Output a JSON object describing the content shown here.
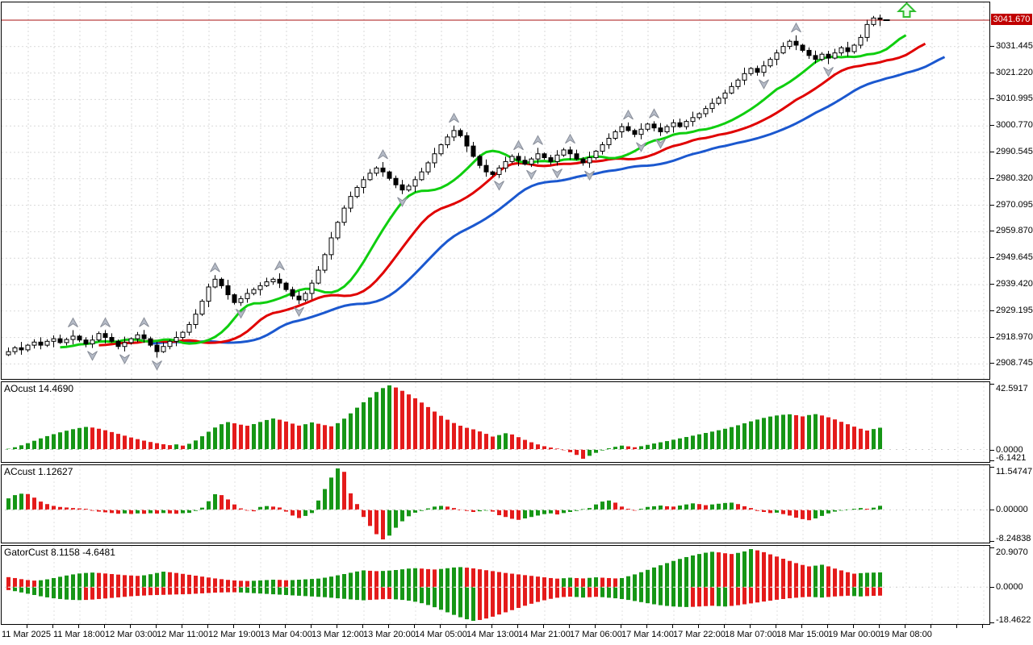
{
  "colors": {
    "background": "#ffffff",
    "grid": "#d9d9d9",
    "candle_border": "#000000",
    "candle_up_fill": "#ffffff",
    "candle_down_fill": "#000000",
    "alligator_jaw_blue": "#1b58cf",
    "alligator_teeth_red": "#e00000",
    "alligator_lips_green": "#0fce0f",
    "histogram_up_green": "#169616",
    "histogram_down_red": "#e41b1b",
    "price_line_red": "#aa1111",
    "price_tag_bg": "#c00000",
    "fractal_gray": "#b4bac6",
    "marker_green": "#2fbe2f"
  },
  "main_chart": {
    "y_axis": {
      "tag": "3041.670",
      "labels": [
        {
          "text": "3031.445",
          "value": 3031.445
        },
        {
          "text": "3021.220",
          "value": 3021.22
        },
        {
          "text": "3010.995",
          "value": 3010.995
        },
        {
          "text": "3000.770",
          "value": 3000.77
        },
        {
          "text": "2990.545",
          "value": 2990.545
        },
        {
          "text": "2980.320",
          "value": 2980.32
        },
        {
          "text": "2970.095",
          "value": 2970.095
        },
        {
          "text": "2959.870",
          "value": 2959.87
        },
        {
          "text": "2949.645",
          "value": 2949.645
        },
        {
          "text": "2939.420",
          "value": 2939.42
        },
        {
          "text": "2929.195",
          "value": 2929.195
        },
        {
          "text": "2918.970",
          "value": 2918.97
        },
        {
          "text": "2908.745",
          "value": 2908.745
        }
      ]
    },
    "x_axis": {
      "labels": [
        "11 Mar 2025",
        "11 Mar 18:00",
        "12 Mar 03:00",
        "12 Mar 11:00",
        "12 Mar 19:00",
        "13 Mar 04:00",
        "13 Mar 12:00",
        "13 Mar 20:00",
        "14 Mar 05:00",
        "14 Mar 13:00",
        "14 Mar 21:00",
        "17 Mar 06:00",
        "17 Mar 14:00",
        "17 Mar 22:00",
        "18 Mar 07:00",
        "18 Mar 15:00",
        "19 Mar 00:00",
        "19 Mar 08:00"
      ]
    },
    "current_price": 3041.67,
    "marker": "up-arrow"
  },
  "panels": {
    "ao": {
      "label": "AOcust 14.4690",
      "scale": {
        "max": "42.5917",
        "zero": "0.0000",
        "min": "-6.1421"
      }
    },
    "ac": {
      "label": "ACcust 1.12627",
      "scale": {
        "max": "11.54747",
        "zero": "0.00000",
        "min": "-8.24838"
      }
    },
    "gator": {
      "label": "GatorCust 8.1158 -4.6481",
      "scale": {
        "max": "20.9070",
        "zero": "0.0000",
        "min": "-18.4622"
      }
    }
  },
  "chart_data": [
    {
      "type": "candlestick",
      "name": "price",
      "current_price": 3041.67,
      "ylim": [
        2905.0,
        3048.6
      ],
      "wick_pattern": [
        1.6,
        0.7,
        2.3,
        0.5,
        1.1,
        1.9,
        0.8,
        1.3
      ],
      "alligator": {
        "jaw": {
          "period": 13,
          "shift": 10
        },
        "teeth": {
          "period": 8,
          "shift": 7
        },
        "lips": {
          "period": 5,
          "shift": 4
        }
      },
      "closes": [
        2913.5,
        2915.0,
        2914.2,
        2916.0,
        2917.2,
        2916.0,
        2917.5,
        2918.5,
        2917.0,
        2918.2,
        2919.5,
        2918.0,
        2916.5,
        2918.0,
        2920.5,
        2919.0,
        2917.5,
        2915.5,
        2917.0,
        2918.5,
        2920.0,
        2918.5,
        2916.0,
        2913.5,
        2915.5,
        2917.5,
        2919.0,
        2921.0,
        2924.0,
        2928.0,
        2933.0,
        2938.5,
        2941.5,
        2939.0,
        2935.5,
        2932.5,
        2934.0,
        2936.0,
        2937.5,
        2939.0,
        2940.5,
        2941.5,
        2940.0,
        2937.5,
        2935.0,
        2933.5,
        2936.0,
        2940.0,
        2945.0,
        2951.0,
        2957.5,
        2963.5,
        2969.0,
        2973.5,
        2977.0,
        2980.0,
        2982.5,
        2984.5,
        2983.0,
        2980.5,
        2978.0,
        2976.0,
        2977.5,
        2980.0,
        2983.0,
        2986.5,
        2990.0,
        2993.5,
        2996.5,
        2999.0,
        2997.0,
        2993.0,
        2989.0,
        2985.5,
        2983.0,
        2982.0,
        2984.5,
        2987.0,
        2989.0,
        2987.5,
        2986.0,
        2988.0,
        2990.0,
        2988.5,
        2987.0,
        2989.5,
        2991.5,
        2990.0,
        2988.0,
        2986.5,
        2988.5,
        2991.0,
        2993.5,
        2996.0,
        2998.5,
        3000.5,
        2999.0,
        2997.5,
        2999.5,
        3001.5,
        3000.0,
        2998.5,
        3000.5,
        3002.0,
        3000.5,
        3002.5,
        3004.0,
        3005.5,
        3007.5,
        3009.5,
        3011.5,
        3013.5,
        3016.0,
        3018.5,
        3021.0,
        3023.0,
        3021.5,
        3024.0,
        3026.5,
        3029.0,
        3031.5,
        3033.5,
        3032.0,
        3030.0,
        3028.0,
        3026.5,
        3028.5,
        3027.0,
        3029.0,
        3031.0,
        3029.5,
        3032.0,
        3035.0,
        3040.0,
        3042.5,
        3041.67
      ]
    },
    {
      "type": "bar",
      "name": "AOcust",
      "current": 14.469,
      "ylim": [
        -6.1421,
        42.5917
      ],
      "values": [
        0.5,
        1.5,
        2.8,
        4.2,
        5.8,
        7.4,
        8.9,
        10.2,
        11.4,
        12.5,
        13.5,
        14.3,
        15.0,
        14.6,
        13.8,
        12.8,
        11.6,
        10.4,
        9.2,
        8.0,
        6.9,
        5.9,
        5.0,
        4.2,
        3.5,
        2.9,
        3.4,
        2.6,
        3.8,
        6.0,
        8.8,
        11.8,
        14.6,
        16.8,
        18.2,
        17.4,
        16.5,
        15.8,
        16.9,
        18.3,
        19.6,
        20.6,
        19.8,
        18.6,
        17.2,
        15.9,
        16.8,
        18.0,
        17.1,
        16.2,
        15.4,
        17.5,
        20.5,
        24.0,
        27.8,
        31.4,
        34.6,
        38.2,
        40.8,
        42.59,
        41.2,
        39.0,
        36.6,
        34.0,
        31.2,
        28.2,
        25.2,
        22.4,
        19.8,
        17.6,
        15.8,
        14.4,
        13.4,
        12.0,
        10.4,
        8.6,
        9.6,
        10.8,
        10.0,
        8.2,
        6.4,
        4.8,
        3.4,
        2.2,
        1.3,
        0.6,
        0.1,
        -1.8,
        -3.6,
        -6.14,
        -4.2,
        -2.2,
        -0.6,
        0.8,
        1.8,
        2.6,
        2.1,
        1.5,
        2.2,
        3.1,
        4.0,
        4.8,
        5.6,
        6.5,
        7.4,
        8.3,
        9.2,
        10.1,
        11.0,
        11.9,
        12.8,
        13.8,
        14.9,
        16.1,
        17.4,
        18.7,
        19.9,
        21.0,
        21.9,
        22.6,
        23.1,
        23.4,
        22.8,
        22.0,
        22.9,
        23.5,
        22.6,
        21.4,
        20.0,
        18.4,
        16.8,
        15.2,
        13.8,
        12.6,
        13.6,
        14.469
      ]
    },
    {
      "type": "bar",
      "name": "ACcust",
      "current": 1.12627,
      "ylim": [
        -8.24838,
        11.54747
      ],
      "values": [
        3.2,
        4.1,
        4.5,
        4.4,
        3.4,
        2.3,
        1.6,
        1.1,
        0.8,
        0.65,
        0.5,
        0.4,
        0.3,
        -0.25,
        -0.5,
        -0.7,
        -0.9,
        -1.1,
        -1.0,
        -1.15,
        -1.0,
        -1.1,
        -0.95,
        -1.05,
        -0.9,
        -1.0,
        -1.1,
        -0.95,
        -0.85,
        -0.3,
        0.6,
        2.4,
        4.35,
        4.1,
        2.9,
        1.5,
        0.4,
        -0.2,
        -0.4,
        0.8,
        1.05,
        0.9,
        0.65,
        -0.5,
        -1.6,
        -2.3,
        -1.7,
        -0.9,
        2.6,
        5.8,
        9.0,
        11.55,
        10.6,
        4.6,
        1.6,
        -2.0,
        -4.5,
        -6.8,
        -8.25,
        -7.2,
        -5.0,
        -3.2,
        -1.8,
        -0.8,
        -0.3,
        0.4,
        0.9,
        1.1,
        0.9,
        0.5,
        0.1,
        -0.3,
        -0.6,
        -0.4,
        -0.2,
        -0.5,
        -1.5,
        -2.0,
        -2.5,
        -2.8,
        -2.4,
        -2.0,
        -1.6,
        -1.2,
        -1.0,
        -1.3,
        -0.9,
        -0.6,
        -0.3,
        0.2,
        0.5,
        1.5,
        2.3,
        2.6,
        2.0,
        0.9,
        0.3,
        -0.2,
        0.3,
        0.8,
        1.0,
        1.2,
        1.0,
        0.9,
        1.2,
        1.5,
        1.8,
        1.6,
        1.3,
        1.5,
        1.7,
        1.9,
        2.0,
        1.6,
        1.0,
        0.5,
        -0.3,
        -0.6,
        -0.9,
        -0.8,
        -1.2,
        -1.6,
        -2.2,
        -2.6,
        -2.9,
        -2.4,
        -1.7,
        -1.0,
        -0.5,
        -0.2,
        0.1,
        0.3,
        0.5,
        0.3,
        0.6,
        1.12627
      ]
    },
    {
      "type": "bar",
      "name": "GatorCust",
      "current_upper": 8.1158,
      "current_lower": -4.6481,
      "ylim": [
        -18.4622,
        20.907
      ],
      "upper": [
        5.5,
        5.0,
        4.4,
        3.9,
        3.6,
        3.8,
        4.3,
        5.0,
        5.7,
        6.4,
        7.0,
        7.5,
        7.8,
        8.0,
        7.8,
        7.5,
        7.2,
        6.9,
        6.6,
        6.4,
        6.2,
        6.5,
        7.1,
        7.8,
        8.5,
        8.2,
        7.8,
        7.3,
        6.8,
        6.3,
        5.8,
        5.3,
        4.8,
        4.4,
        4.0,
        3.7,
        3.5,
        3.4,
        3.5,
        3.7,
        3.9,
        4.1,
        4.0,
        3.8,
        3.9,
        4.1,
        4.3,
        4.5,
        4.7,
        5.2,
        5.8,
        6.5,
        7.2,
        7.9,
        8.6,
        9.2,
        9.0,
        8.8,
        8.9,
        9.1,
        9.4,
        9.8,
        10.2,
        10.4,
        10.2,
        9.9,
        9.7,
        10.0,
        10.4,
        10.8,
        11.0,
        10.7,
        10.3,
        9.8,
        9.3,
        8.8,
        8.3,
        7.8,
        7.4,
        7.0,
        6.6,
        6.2,
        5.8,
        5.4,
        5.0,
        4.7,
        4.9,
        5.2,
        5.0,
        4.8,
        5.1,
        5.4,
        5.2,
        5.0,
        4.8,
        5.0,
        6.0,
        7.0,
        8.2,
        9.5,
        10.8,
        12.0,
        13.2,
        14.4,
        15.5,
        16.5,
        17.4,
        18.2,
        18.9,
        19.4,
        19.1,
        18.6,
        18.2,
        18.8,
        19.6,
        20.9,
        20.2,
        19.2,
        18.0,
        16.8,
        15.6,
        14.4,
        13.2,
        12.2,
        11.4,
        11.8,
        12.3,
        11.4,
        10.2,
        9.2,
        8.2,
        7.4,
        7.7,
        7.9,
        8.0,
        8.1158
      ],
      "lower": [
        -1.6,
        -2.2,
        -2.9,
        -3.6,
        -4.3,
        -5.0,
        -5.6,
        -6.1,
        -6.5,
        -6.8,
        -7.0,
        -7.1,
        -7.0,
        -6.8,
        -6.5,
        -6.2,
        -5.9,
        -5.6,
        -5.3,
        -5.0,
        -4.8,
        -4.6,
        -4.4,
        -4.3,
        -4.2,
        -4.1,
        -4.0,
        -3.9,
        -3.8,
        -3.6,
        -3.4,
        -3.2,
        -3.0,
        -2.9,
        -2.8,
        -2.8,
        -2.9,
        -3.1,
        -3.3,
        -3.5,
        -3.7,
        -3.9,
        -4.1,
        -4.3,
        -4.5,
        -4.7,
        -4.9,
        -5.1,
        -5.3,
        -5.5,
        -5.8,
        -6.1,
        -6.4,
        -6.7,
        -7.0,
        -7.2,
        -7.0,
        -6.8,
        -6.6,
        -6.5,
        -6.7,
        -7.0,
        -7.4,
        -8.0,
        -8.8,
        -9.8,
        -11.0,
        -12.4,
        -13.8,
        -15.2,
        -16.5,
        -17.6,
        -18.46,
        -18.0,
        -17.2,
        -16.2,
        -15.0,
        -13.8,
        -12.6,
        -11.4,
        -10.2,
        -9.1,
        -8.1,
        -7.2,
        -6.4,
        -5.8,
        -5.4,
        -5.2,
        -5.4,
        -5.7,
        -5.5,
        -5.3,
        -5.5,
        -5.8,
        -6.1,
        -6.5,
        -7.0,
        -7.6,
        -8.2,
        -8.8,
        -9.4,
        -9.9,
        -10.3,
        -10.6,
        -10.8,
        -10.9,
        -10.8,
        -10.6,
        -10.4,
        -10.2,
        -10.4,
        -10.6,
        -10.3,
        -9.9,
        -9.4,
        -8.9,
        -8.4,
        -7.9,
        -7.4,
        -6.9,
        -6.5,
        -6.1,
        -5.8,
        -5.5,
        -5.3,
        -5.5,
        -5.7,
        -5.4,
        -5.1,
        -4.9,
        -4.7,
        -4.9,
        -5.1,
        -4.9,
        -4.75,
        -4.6481
      ]
    }
  ]
}
